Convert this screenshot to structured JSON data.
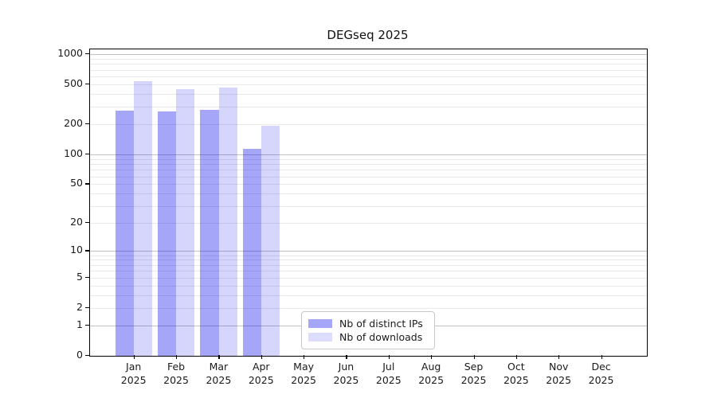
{
  "chart_data": {
    "type": "bar",
    "title": "DEGseq 2025",
    "categories": [
      "Jan",
      "Feb",
      "Mar",
      "Apr",
      "May",
      "Jun",
      "Jul",
      "Aug",
      "Sep",
      "Oct",
      "Nov",
      "Dec"
    ],
    "x_tick_year": "2025",
    "series": [
      {
        "name": "Nb of distinct IPs",
        "color": "#a6a6f9",
        "fill": "rgba(0,0,238,0.35)",
        "values": [
          275,
          267,
          280,
          114,
          null,
          null,
          null,
          null,
          null,
          null,
          null,
          null
        ]
      },
      {
        "name": "Nb of downloads",
        "color": "#dcdcfc",
        "fill": "rgba(0,0,238,0.16)",
        "values": [
          540,
          450,
          465,
          192,
          null,
          null,
          null,
          null,
          null,
          null,
          null,
          null
        ]
      }
    ],
    "y_axis": {
      "scale": "log1p",
      "ticks": [
        0,
        1,
        2,
        5,
        10,
        20,
        50,
        100,
        200,
        500,
        1000
      ],
      "range": [
        0,
        1000
      ],
      "major_grid_values": [
        1,
        10,
        100,
        1000
      ],
      "minor_grid_values": [
        2,
        3,
        4,
        5,
        6,
        7,
        8,
        9,
        20,
        30,
        40,
        50,
        60,
        70,
        80,
        90,
        200,
        300,
        400,
        500,
        600,
        700,
        800,
        900
      ]
    },
    "legend": {
      "position": "lower-center",
      "entries": [
        "Nb of distinct IPs",
        "Nb of downloads"
      ]
    },
    "grid": true
  },
  "colors": {
    "background": "#ffffff",
    "axis": "#000000",
    "grid_major": "#c2c2c2",
    "grid_minor": "#e9e9e9",
    "text": "#1a1a1a"
  }
}
